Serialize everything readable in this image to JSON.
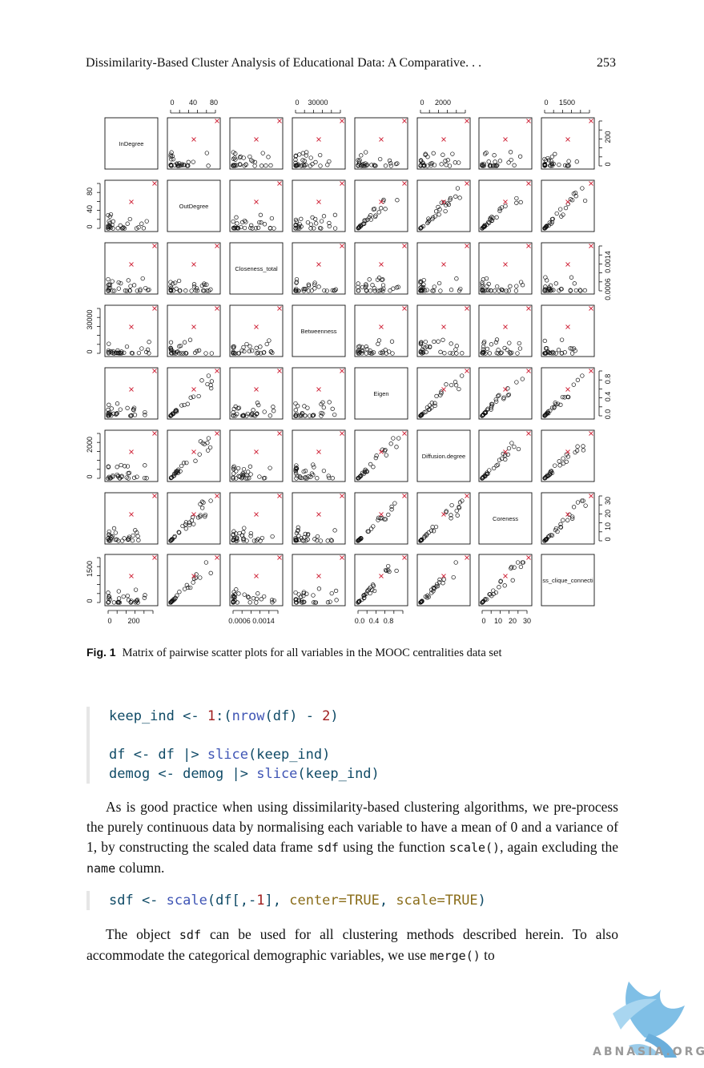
{
  "header": {
    "title": "Dissimilarity-Based Cluster Analysis of Educational Data: A Comparative. . .",
    "page": "253"
  },
  "figure": {
    "caption_label": "Fig. 1",
    "caption_text": "Matrix of pairwise scatter plots for all variables in the MOOC centralities data set"
  },
  "chart_data": {
    "type": "scatter",
    "layout": "pairs-matrix",
    "variables": [
      "InDegree",
      "OutDegree",
      "Closeness_total",
      "Betweenness",
      "Eigen",
      "Diffusion.degree",
      "Coreness",
      "Cross_clique_connectivity"
    ],
    "diagonal_labels": [
      "InDegree",
      "OutDegree",
      "Closeness_total",
      "Betweenness",
      "Eigen",
      "Diffusion.degree",
      "Coreness",
      "ss_clique_connecti"
    ],
    "top_axis": [
      {
        "col": 1,
        "ticks": [
          "0",
          "40",
          "80"
        ]
      },
      {
        "col": 3,
        "ticks": [
          "0",
          "30000"
        ]
      },
      {
        "col": 5,
        "ticks": [
          "0",
          "2000"
        ]
      },
      {
        "col": 7,
        "ticks": [
          "0",
          "1500"
        ]
      }
    ],
    "bottom_axis": [
      {
        "col": 0,
        "ticks": [
          "0",
          "200"
        ]
      },
      {
        "col": 2,
        "ticks": [
          "0.0006",
          "0.0014"
        ]
      },
      {
        "col": 4,
        "ticks": [
          "0.0",
          "0.4",
          "0.8"
        ]
      },
      {
        "col": 6,
        "ticks": [
          "0",
          "10",
          "20",
          "30"
        ]
      }
    ],
    "left_axis": [
      {
        "row": 1,
        "ticks": [
          "0",
          "40",
          "80"
        ]
      },
      {
        "row": 3,
        "ticks": [
          "0",
          "30000"
        ]
      },
      {
        "row": 5,
        "ticks": [
          "0",
          "2000"
        ]
      },
      {
        "row": 7,
        "ticks": [
          "0",
          "1500"
        ]
      }
    ],
    "right_axis": [
      {
        "row": 0,
        "ticks": [
          "0",
          "200"
        ]
      },
      {
        "row": 2,
        "ticks": [
          "0.0006",
          "0.0014"
        ]
      },
      {
        "row": 4,
        "ticks": [
          "0.0",
          "0.4",
          "0.8"
        ]
      },
      {
        "row": 6,
        "ticks": [
          "0",
          "10",
          "20",
          "30"
        ]
      }
    ],
    "point_style": {
      "regular": "open-circle",
      "highlight": "x",
      "highlight_color": "#d0283c"
    }
  },
  "code1": {
    "l1_a": "keep_ind <- ",
    "l1_b": "1",
    "l1_c": ":(",
    "l1_d": "nrow",
    "l1_e": "(df) - ",
    "l1_f": "2",
    "l1_g": ")",
    "l2_a": "df <- df |> ",
    "l2_b": "slice",
    "l2_c": "(keep_ind)",
    "l3_a": "demog <- demog |> ",
    "l3_b": "slice",
    "l3_c": "(keep_ind)"
  },
  "para1": {
    "t1": "As is good practice when using dissimilarity-based clustering algorithms, we pre-process the purely continuous data by normalising each variable to have a mean of 0 and a variance of 1, by constructing the scaled data frame ",
    "c1": "sdf",
    "t2": " using the function ",
    "c2": "scale()",
    "t3": ", again excluding the ",
    "c3": "name",
    "t4": " column."
  },
  "code2": {
    "a": "sdf <- ",
    "b": "scale",
    "c": "(df[,-",
    "d": "1",
    "e": "], ",
    "f": "center=TRUE",
    "g": ", ",
    "h": "scale=TRUE",
    "i": ")"
  },
  "para2": {
    "t1": "The object ",
    "c1": "sdf",
    "t2": " can be used for all clustering methods described herein. To also accommodate the categorical demographic variables, we use ",
    "c2": "merge()",
    "t3": " to"
  },
  "watermark": {
    "text": "ABNASIA.ORG"
  }
}
